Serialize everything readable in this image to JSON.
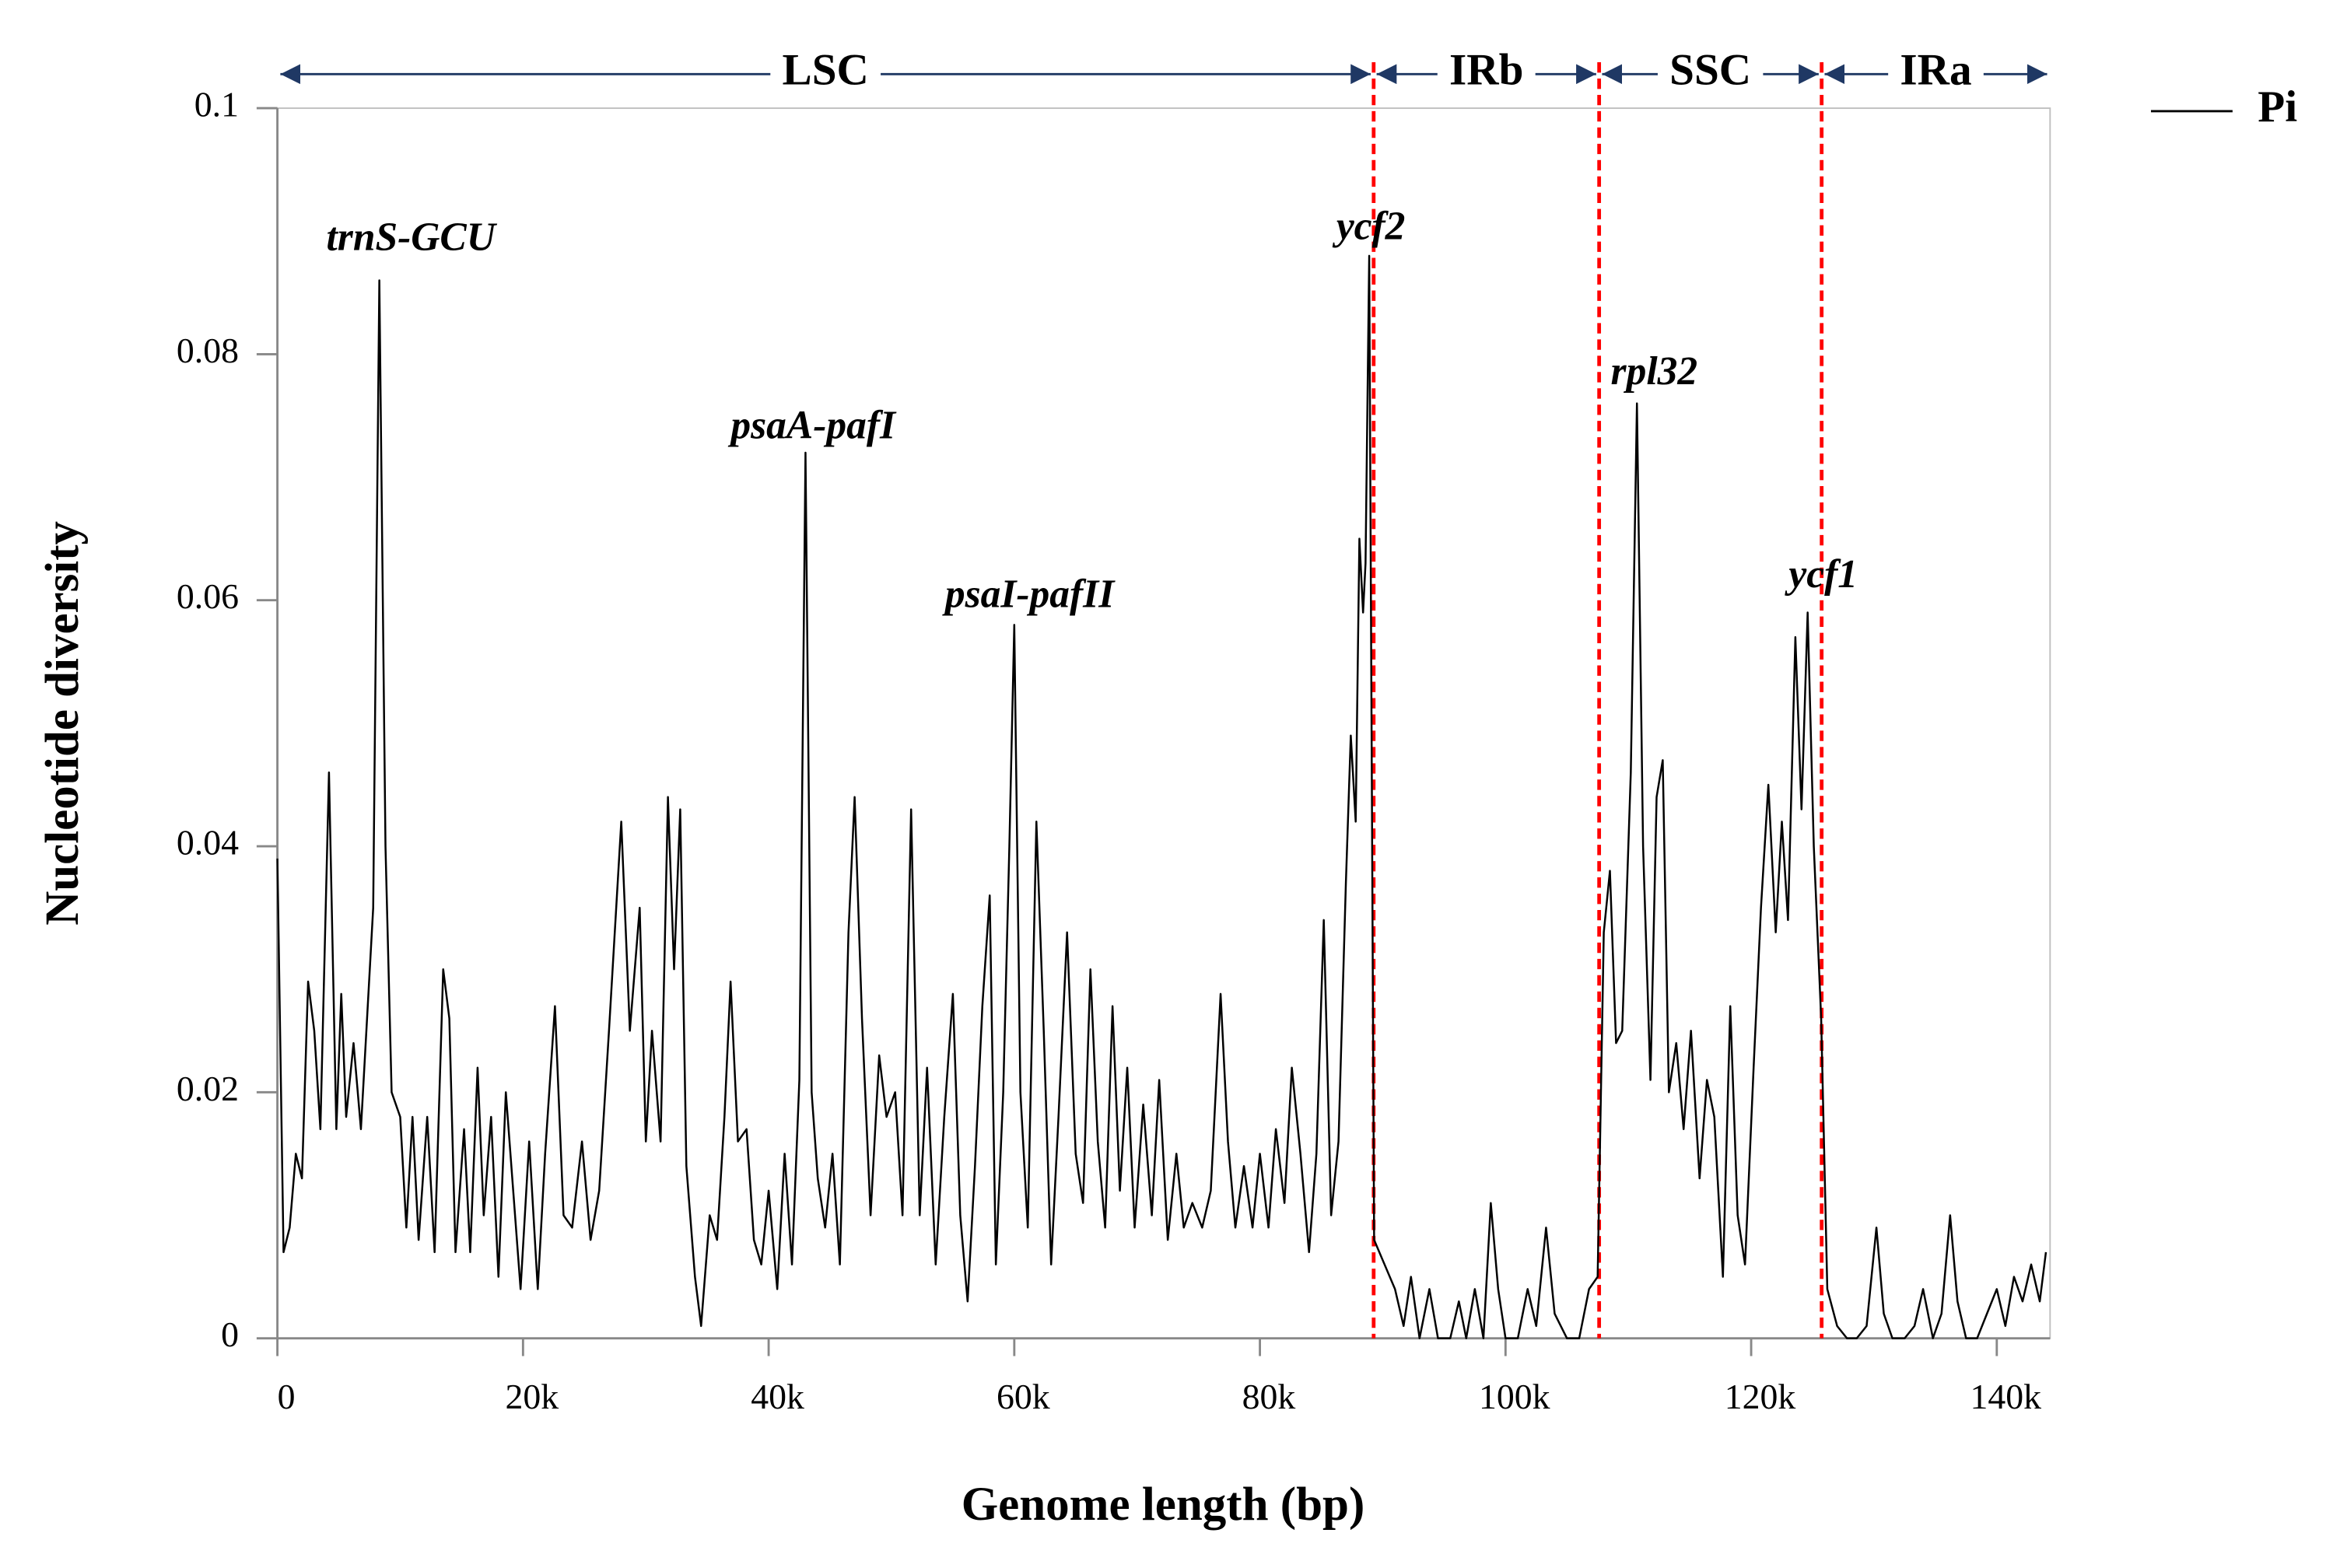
{
  "chart_data": {
    "type": "line",
    "xlabel": "Genome length (bp)",
    "ylabel": "Nucleotide diversity",
    "xlim": [
      0,
      144340
    ],
    "ylim": [
      0,
      0.1
    ],
    "xticks": [
      0,
      {
        "value": 20000,
        "label": "20k"
      },
      {
        "value": 40000,
        "label": "40k"
      },
      {
        "value": 60000,
        "label": "60k"
      },
      {
        "value": 80000,
        "label": "80k"
      },
      {
        "value": 100000,
        "label": "100k"
      },
      {
        "value": 120000,
        "label": "120k"
      },
      {
        "value": 140000,
        "label": "140k"
      }
    ],
    "yticks": [
      0,
      0.02,
      0.04,
      0.06,
      0.08,
      0.1
    ],
    "legend": "top-right",
    "boundary_color": "#ff0000",
    "regions": [
      {
        "label": "LSC",
        "start": 0,
        "end": 89262
      },
      {
        "label": "IRb",
        "start": 89262,
        "end": 107622
      },
      {
        "label": "SSC",
        "start": 107622,
        "end": 125740
      },
      {
        "label": "IRa",
        "start": 125740,
        "end": 144340
      }
    ],
    "annotations": [
      {
        "text": "trnS-GCU",
        "x": 10870,
        "y": 0.0892
      },
      {
        "text": "psaA-pafI",
        "x": 43620,
        "y": 0.0739
      },
      {
        "text": "psaI-pafII",
        "x": 61250,
        "y": 0.0602
      },
      {
        "text": "ycf2",
        "x": 89030,
        "y": 0.0901
      },
      {
        "text": "rpl32",
        "x": 112100,
        "y": 0.0783
      },
      {
        "text": "ycf1",
        "x": 125870,
        "y": 0.0618
      }
    ],
    "x": [
      0,
      500,
      1000,
      1500,
      2000,
      2500,
      3000,
      3500,
      4200,
      4800,
      5200,
      5600,
      6200,
      6800,
      7300,
      7800,
      8300,
      8800,
      9300,
      10000,
      10500,
      11000,
      11500,
      12200,
      12800,
      13500,
      14000,
      14500,
      15200,
      15700,
      16300,
      16800,
      17400,
      18000,
      18600,
      19200,
      19800,
      20500,
      21200,
      21800,
      22600,
      23300,
      24000,
      24800,
      25500,
      26200,
      27000,
      28000,
      28700,
      29500,
      30000,
      30500,
      31200,
      31800,
      32300,
      32800,
      33300,
      34000,
      34500,
      35200,
      35800,
      36400,
      36900,
      37500,
      38200,
      38800,
      39400,
      40000,
      40700,
      41300,
      41900,
      42500,
      43000,
      43500,
      44000,
      44600,
      45200,
      45800,
      46500,
      47000,
      47600,
      48300,
      49000,
      49600,
      50300,
      50900,
      51600,
      52300,
      52900,
      53600,
      54300,
      55000,
      55600,
      56200,
      56800,
      57400,
      58000,
      58500,
      59100,
      59600,
      60000,
      60500,
      61100,
      61800,
      62400,
      63000,
      63600,
      64300,
      65000,
      65600,
      66200,
      66800,
      67400,
      68000,
      68600,
      69200,
      69800,
      70500,
      71200,
      71800,
      72500,
      73200,
      73800,
      74500,
      75300,
      76000,
      76800,
      77400,
      78000,
      78700,
      79400,
      80000,
      80700,
      81300,
      82000,
      82600,
      83300,
      84000,
      84600,
      85200,
      85800,
      86400,
      87000,
      87400,
      87800,
      88100,
      88400,
      88600,
      88900,
      89300,
      91000,
      91700,
      92300,
      93000,
      93800,
      94500,
      95500,
      96200,
      96800,
      97500,
      98200,
      98800,
      99400,
      100000,
      101000,
      101800,
      102500,
      103300,
      104000,
      105000,
      106000,
      106800,
      107500,
      108000,
      108500,
      109000,
      109500,
      110200,
      110700,
      111200,
      111800,
      112300,
      112800,
      113300,
      113900,
      114500,
      115100,
      115800,
      116400,
      117000,
      117700,
      118300,
      118900,
      119500,
      120200,
      120800,
      121400,
      122000,
      122500,
      123000,
      123600,
      124100,
      124600,
      125100,
      125700,
      126200,
      127000,
      127800,
      128600,
      129400,
      130200,
      130800,
      131500,
      132500,
      133300,
      134000,
      134800,
      135500,
      136200,
      136800,
      137500,
      138400,
      139200,
      140000,
      140700,
      141400,
      142100,
      142800,
      143500,
      144000
    ],
    "series": [
      {
        "name": "Pi",
        "color": "#000000",
        "values": [
          0.039,
          0.007,
          0.009,
          0.015,
          0.013,
          0.029,
          0.025,
          0.017,
          0.046,
          0.017,
          0.028,
          0.018,
          0.024,
          0.017,
          0.026,
          0.035,
          0.086,
          0.04,
          0.02,
          0.018,
          0.009,
          0.018,
          0.008,
          0.018,
          0.007,
          0.03,
          0.026,
          0.007,
          0.017,
          0.007,
          0.022,
          0.01,
          0.018,
          0.005,
          0.02,
          0.012,
          0.004,
          0.016,
          0.004,
          0.015,
          0.027,
          0.01,
          0.009,
          0.016,
          0.008,
          0.012,
          0.025,
          0.042,
          0.025,
          0.035,
          0.016,
          0.025,
          0.016,
          0.044,
          0.03,
          0.043,
          0.014,
          0.005,
          0.001,
          0.01,
          0.008,
          0.018,
          0.029,
          0.016,
          0.017,
          0.008,
          0.006,
          0.012,
          0.004,
          0.015,
          0.006,
          0.021,
          0.072,
          0.02,
          0.013,
          0.009,
          0.015,
          0.006,
          0.033,
          0.044,
          0.026,
          0.01,
          0.023,
          0.018,
          0.02,
          0.01,
          0.043,
          0.01,
          0.022,
          0.006,
          0.018,
          0.028,
          0.01,
          0.003,
          0.014,
          0.027,
          0.036,
          0.006,
          0.02,
          0.04,
          0.058,
          0.02,
          0.009,
          0.042,
          0.025,
          0.006,
          0.018,
          0.033,
          0.015,
          0.011,
          0.03,
          0.016,
          0.009,
          0.027,
          0.012,
          0.022,
          0.009,
          0.019,
          0.01,
          0.021,
          0.008,
          0.015,
          0.009,
          0.011,
          0.009,
          0.012,
          0.028,
          0.016,
          0.009,
          0.014,
          0.009,
          0.015,
          0.009,
          0.017,
          0.011,
          0.022,
          0.015,
          0.007,
          0.015,
          0.034,
          0.01,
          0.016,
          0.037,
          0.049,
          0.042,
          0.065,
          0.059,
          0.063,
          0.088,
          0.008,
          0.004,
          0.001,
          0.005,
          0.0,
          0.004,
          0.0,
          0.0,
          0.003,
          0.0,
          0.004,
          0.0,
          0.011,
          0.004,
          0.0,
          0.0,
          0.004,
          0.001,
          0.009,
          0.002,
          0.0,
          0.0,
          0.004,
          0.005,
          0.033,
          0.038,
          0.024,
          0.025,
          0.046,
          0.076,
          0.04,
          0.021,
          0.044,
          0.047,
          0.02,
          0.024,
          0.017,
          0.025,
          0.013,
          0.021,
          0.018,
          0.005,
          0.027,
          0.01,
          0.006,
          0.022,
          0.035,
          0.045,
          0.033,
          0.042,
          0.034,
          0.057,
          0.043,
          0.059,
          0.04,
          0.026,
          0.004,
          0.001,
          0.0,
          0.0,
          0.001,
          0.009,
          0.002,
          0.0,
          0.0,
          0.001,
          0.004,
          0.0,
          0.002,
          0.01,
          0.003,
          0.0,
          0.0,
          0.002,
          0.004,
          0.001,
          0.005,
          0.003,
          0.006,
          0.003,
          0.007
        ]
      }
    ]
  }
}
